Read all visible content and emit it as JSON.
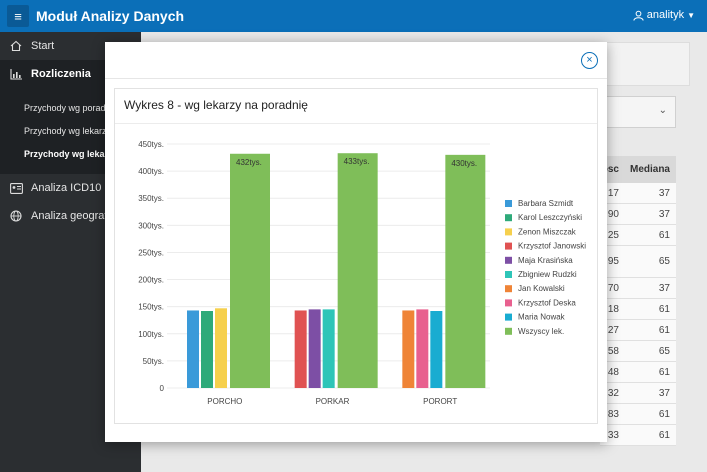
{
  "header": {
    "title": "Moduł Analizy Danych",
    "user": "analityk"
  },
  "sidebar": {
    "items": [
      {
        "label": "Start",
        "icon": "home-icon"
      },
      {
        "label": "Rozliczenia",
        "icon": "chart-icon"
      },
      {
        "label": "Analiza ICD10",
        "icon": "id-card-icon"
      },
      {
        "label": "Analiza geografic",
        "icon": "globe-icon"
      }
    ],
    "subitems": [
      {
        "label": "Przychody wg poradni"
      },
      {
        "label": "Przychody wg lekarzy"
      },
      {
        "label": "Przychody wg lekarzy"
      }
    ]
  },
  "background_table": {
    "headers": [
      "osc",
      "Mediana"
    ],
    "rows": [
      [
        "17",
        "37"
      ],
      [
        "90",
        "37"
      ],
      [
        "25",
        "61"
      ],
      [
        "95",
        "65"
      ],
      [
        "70",
        "37"
      ],
      [
        "18",
        "61"
      ],
      [
        "27",
        "61"
      ],
      [
        "58",
        "65"
      ],
      [
        "48",
        "61"
      ],
      [
        "32",
        "37"
      ],
      [
        "83",
        "61"
      ],
      [
        "33",
        "61"
      ]
    ]
  },
  "modal": {
    "close_label": "×"
  },
  "chart_data": {
    "type": "bar",
    "title": "Wykres 8 - wg lekarzy na poradnię",
    "categories": [
      "PORCHO",
      "PORKAR",
      "PORORT"
    ],
    "y_ticks": [
      "0",
      "50tys.",
      "100tys.",
      "150tys.",
      "200tys.",
      "250tys.",
      "300tys.",
      "350tys.",
      "400tys.",
      "450tys."
    ],
    "ylim": [
      0,
      450000
    ],
    "grid": true,
    "legend_position": "right",
    "groups": [
      {
        "category": "PORCHO",
        "bars": [
          {
            "series": "Barbara Szmidt",
            "value": 143000
          },
          {
            "series": "Karol Leszczyński",
            "value": 142000
          },
          {
            "series": "Zenon Miszczak",
            "value": 147000
          },
          {
            "series": "Wszyscy lek.",
            "value": 432000,
            "label": "432tys."
          }
        ]
      },
      {
        "category": "PORKAR",
        "bars": [
          {
            "series": "Krzysztof Janowski",
            "value": 143000
          },
          {
            "series": "Maja Krasińska",
            "value": 145000
          },
          {
            "series": "Zbigniew Rudzki",
            "value": 145000
          },
          {
            "series": "Wszyscy lek.",
            "value": 433000,
            "label": "433tys."
          }
        ]
      },
      {
        "category": "PORORT",
        "bars": [
          {
            "series": "Jan Kowalski",
            "value": 143000
          },
          {
            "series": "Krzysztof Deska",
            "value": 145000
          },
          {
            "series": "Maria Nowak",
            "value": 142000
          },
          {
            "series": "Wszyscy lek.",
            "value": 430000,
            "label": "430tys."
          }
        ]
      }
    ],
    "legend": [
      {
        "name": "Barbara Szmidt",
        "color": "#3a9ad9"
      },
      {
        "name": "Karol Leszczyński",
        "color": "#2eaa7a"
      },
      {
        "name": "Zenon Miszczak",
        "color": "#f6d04d"
      },
      {
        "name": "Krzysztof Janowski",
        "color": "#e05252"
      },
      {
        "name": "Maja Krasińska",
        "color": "#7d4fa5"
      },
      {
        "name": "Zbigniew Rudzki",
        "color": "#2ec5b8"
      },
      {
        "name": "Jan Kowalski",
        "color": "#ef8437"
      },
      {
        "name": "Krzysztof Deska",
        "color": "#e8608f"
      },
      {
        "name": "Maria Nowak",
        "color": "#19acd1"
      },
      {
        "name": "Wszyscy lek.",
        "color": "#7fbe59"
      }
    ]
  }
}
